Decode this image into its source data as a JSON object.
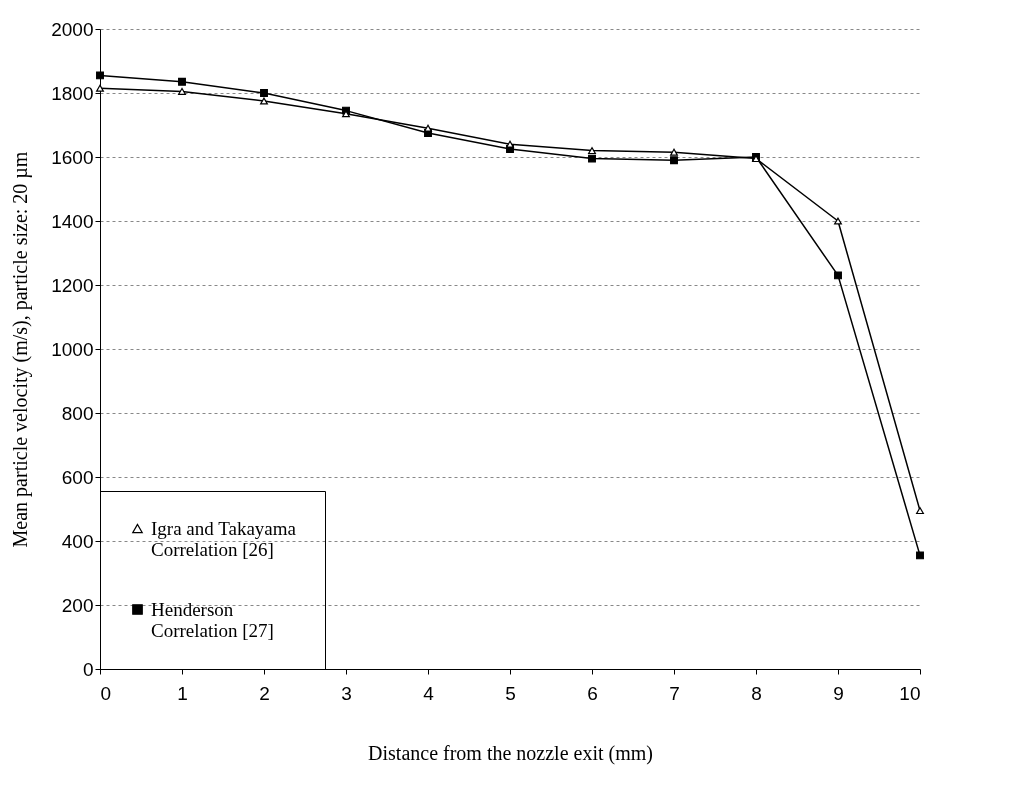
{
  "chart_data": {
    "type": "line",
    "xlabel": "Distance from the nozzle exit (mm)",
    "ylabel": "Mean particle velocity (m/s), particle size: 20 µm",
    "x": [
      0,
      1,
      2,
      3,
      4,
      5,
      6,
      7,
      8,
      9,
      10
    ],
    "series": [
      {
        "name": "Igra and Takayama Correlation [26]",
        "color": "#000000",
        "marker": "triangle",
        "values": [
          1815,
          1805,
          1775,
          1735,
          1690,
          1640,
          1620,
          1615,
          1595,
          1400,
          495
        ]
      },
      {
        "name": "Henderson Correlation [27]",
        "color": "#000000",
        "marker": "square",
        "values": [
          1855,
          1835,
          1800,
          1745,
          1675,
          1625,
          1595,
          1590,
          1600,
          1230,
          355
        ]
      }
    ],
    "xlim": [
      0,
      10
    ],
    "xticks": [
      0,
      1,
      2,
      3,
      4,
      5,
      6,
      7,
      8,
      9,
      10
    ],
    "ylim": [
      0,
      2000
    ],
    "yticks": [
      0,
      200,
      400,
      600,
      800,
      1000,
      1200,
      1400,
      1600,
      1800,
      2000
    ],
    "grid": "y",
    "legend": "left"
  }
}
